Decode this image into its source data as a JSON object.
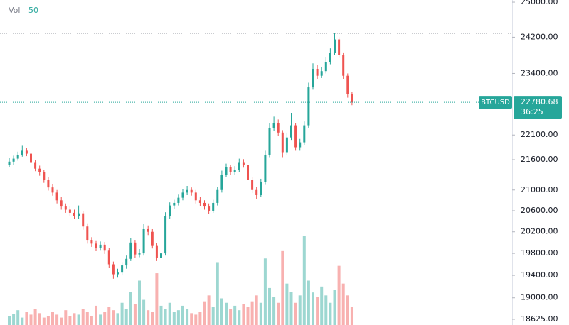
{
  "chart_data": {
    "type": "candlestick",
    "symbol": "BTCUSD",
    "last_price": 22780.68,
    "countdown": "36:25",
    "legend": {
      "label": "Vol",
      "value": 50
    },
    "log_scale": true,
    "up_color": "#26a69a",
    "down_color": "#ef5350",
    "ylim": [
      18527,
      25050
    ],
    "yticks": [
      {
        "value": 25000,
        "label": "25000.00"
      },
      {
        "value": 24200,
        "label": "24200.00"
      },
      {
        "value": 23400,
        "label": "23400.00"
      },
      {
        "value": 22100,
        "label": "22100.00"
      },
      {
        "value": 21600,
        "label": "21600.00"
      },
      {
        "value": 21000,
        "label": "21000.00"
      },
      {
        "value": 20600,
        "label": "20600.00"
      },
      {
        "value": 20200,
        "label": "20200.00"
      },
      {
        "value": 19800,
        "label": "19800.00"
      },
      {
        "value": 19400,
        "label": "19400.00"
      },
      {
        "value": 19000,
        "label": "19000.00"
      },
      {
        "value": 18625,
        "label": "18625.00"
      }
    ],
    "open": [
      21500,
      21560,
      21620,
      21700,
      21780,
      21720,
      21550,
      21420,
      21350,
      21200,
      21050,
      20950,
      20800,
      20680,
      20620,
      20560,
      20500,
      20550,
      20300,
      20050,
      19980,
      19900,
      19960,
      19850,
      19600,
      19420,
      19450,
      19580,
      19700,
      20000,
      19780,
      19800,
      20250,
      20200,
      19950,
      19720,
      19800,
      20500,
      20700,
      20750,
      20850,
      20950,
      21000,
      20950,
      20800,
      20750,
      20680,
      20600,
      20750,
      21000,
      21300,
      21450,
      21350,
      21400,
      21550,
      21500,
      21200,
      21000,
      20900,
      21150,
      21700,
      22250,
      22350,
      22150,
      21750,
      22050,
      22300,
      21850,
      21950,
      22300,
      23100,
      23500,
      23350,
      23450,
      23650,
      23850,
      24150,
      23800,
      23350,
      22950
    ],
    "high": [
      21640,
      21680,
      21760,
      21880,
      21830,
      21770,
      21600,
      21480,
      21400,
      21260,
      21110,
      21000,
      20860,
      20740,
      20690,
      20620,
      20700,
      20600,
      20360,
      20100,
      20040,
      20020,
      20010,
      19900,
      19650,
      19520,
      19640,
      19760,
      20080,
      20050,
      19880,
      20350,
      20320,
      20250,
      19990,
      19870,
      20570,
      20760,
      20810,
      20910,
      21010,
      21080,
      21050,
      21000,
      20860,
      20800,
      20740,
      20810,
      21060,
      21380,
      21520,
      21500,
      21470,
      21620,
      21610,
      21550,
      21260,
      21060,
      21220,
      21780,
      22340,
      22480,
      22420,
      22200,
      22150,
      22560,
      22350,
      22020,
      22380,
      23200,
      23620,
      23580,
      23540,
      23750,
      23950,
      24286,
      24200,
      23860,
      23400,
      23000
    ],
    "low": [
      21450,
      21500,
      21580,
      21660,
      21670,
      21490,
      21370,
      21280,
      21140,
      20990,
      20890,
      20740,
      20620,
      20560,
      20500,
      20440,
      20450,
      20240,
      19980,
      19920,
      19840,
      19850,
      19790,
      19540,
      19340,
      19360,
      19400,
      19520,
      19660,
      19720,
      19730,
      19760,
      20140,
      19890,
      19660,
      19670,
      19760,
      20440,
      20640,
      20700,
      20800,
      20900,
      20890,
      20740,
      20690,
      20620,
      20540,
      20560,
      20700,
      20950,
      21250,
      21290,
      21300,
      21350,
      21440,
      21140,
      20940,
      20830,
      20860,
      21100,
      21650,
      22180,
      22080,
      21650,
      21700,
      22000,
      21780,
      21780,
      21900,
      22250,
      23050,
      23280,
      23300,
      23400,
      23600,
      23800,
      23740,
      23280,
      22880,
      22720
    ],
    "close": [
      21560,
      21620,
      21700,
      21780,
      21720,
      21550,
      21420,
      21350,
      21200,
      21050,
      20950,
      20800,
      20680,
      20620,
      20560,
      20500,
      20550,
      20300,
      20050,
      19980,
      19900,
      19960,
      19850,
      19600,
      19420,
      19450,
      19580,
      19700,
      20000,
      19780,
      19800,
      20250,
      20200,
      19950,
      19720,
      19800,
      20500,
      20700,
      20750,
      20850,
      20950,
      21000,
      20950,
      20800,
      20750,
      20680,
      20600,
      20750,
      21000,
      21300,
      21450,
      21350,
      21400,
      21550,
      21500,
      21200,
      21000,
      20900,
      21150,
      21700,
      22250,
      22350,
      22150,
      21750,
      22050,
      22300,
      21850,
      21950,
      22300,
      23100,
      23500,
      23350,
      23450,
      23650,
      23850,
      24150,
      23800,
      23350,
      22950,
      22780.68
    ],
    "volume": [
      12,
      15,
      20,
      10,
      18,
      14,
      22,
      16,
      10,
      12,
      18,
      14,
      10,
      20,
      12,
      16,
      14,
      22,
      18,
      12,
      26,
      14,
      18,
      24,
      20,
      16,
      30,
      22,
      45,
      28,
      60,
      34,
      20,
      18,
      70,
      26,
      22,
      30,
      18,
      20,
      26,
      22,
      16,
      14,
      18,
      32,
      40,
      24,
      85,
      36,
      30,
      22,
      26,
      20,
      28,
      24,
      32,
      40,
      30,
      90,
      50,
      38,
      30,
      100,
      56,
      45,
      30,
      40,
      120,
      60,
      44,
      38,
      52,
      40,
      30,
      48,
      80,
      56,
      40,
      24
    ]
  }
}
